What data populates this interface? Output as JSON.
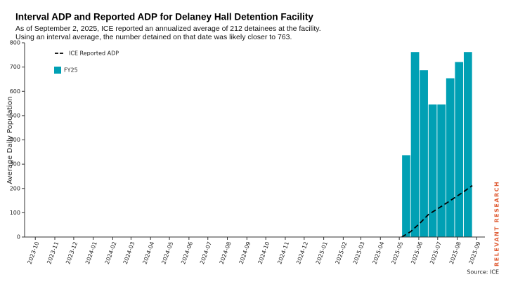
{
  "chart_data": {
    "type": "bar",
    "title": "Interval ADP and Reported ADP for Delaney Hall Detention Facility",
    "subtitle": [
      "As of September 2, 2025, ICE reported an annualized average of 212 detainees at the facility.",
      "Using an interval average, the number detained on that date was likely closer to 763."
    ],
    "ylabel": "Average Daily Population",
    "source": "Source: ICE",
    "logo": "RELEVANT RESEARCH",
    "xlim": [
      "2023-09-14",
      "2025-09-14"
    ],
    "xticks": [
      "2023-10",
      "2023-11",
      "2023-12",
      "2024-01",
      "2024-02",
      "2024-03",
      "2024-04",
      "2024-05",
      "2024-06",
      "2024-07",
      "2024-08",
      "2024-09",
      "2024-10",
      "2024-11",
      "2024-12",
      "2025-01",
      "2025-02",
      "2025-03",
      "2025-04",
      "2025-05",
      "2025-06",
      "2025-07",
      "2025-08",
      "2025-09"
    ],
    "ylim": [
      0,
      800
    ],
    "yticks": [
      0,
      100,
      200,
      300,
      400,
      500,
      600,
      700,
      800
    ],
    "legend": "upper left",
    "series": [
      {
        "name": "ICE Reported ADP",
        "type": "line",
        "color": "#000000",
        "x": [
          "2025-05-05",
          "2025-05-19",
          "2025-06-02",
          "2025-06-16",
          "2025-06-30",
          "2025-07-14",
          "2025-07-28",
          "2025-08-11",
          "2025-08-25"
        ],
        "values": [
          0,
          22,
          55,
          92,
          115,
          138,
          162,
          186,
          212
        ]
      },
      {
        "name": "FY25",
        "type": "bar",
        "color": "#00a0b4",
        "bins": [
          "2025-05-05",
          "2025-05-19",
          "2025-06-02",
          "2025-06-16",
          "2025-06-30",
          "2025-07-14",
          "2025-07-28",
          "2025-08-11",
          "2025-08-25"
        ],
        "values": [
          338,
          763,
          688,
          547,
          547,
          655,
          722,
          763
        ]
      }
    ]
  }
}
